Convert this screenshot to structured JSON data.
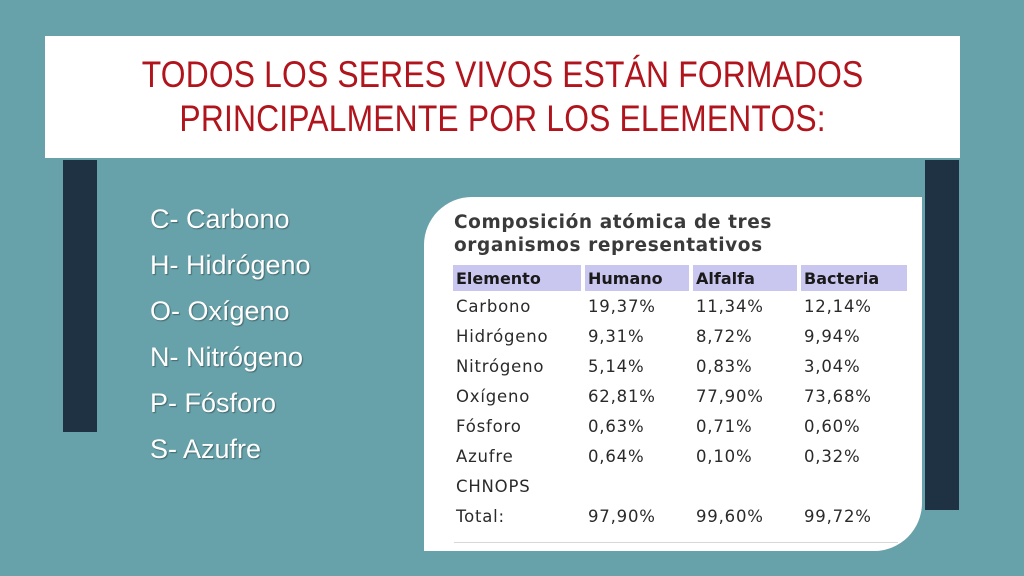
{
  "title": {
    "line1": "TODOS LOS SERES VIVOS ESTÁN FORMADOS",
    "line2": "PRINCIPALMENTE POR LOS ELEMENTOS:"
  },
  "elements": [
    "C- Carbono",
    "H- Hidrógeno",
    "O- Oxígeno",
    "N- Nitrógeno",
    "P- Fósforo",
    "S- Azufre"
  ],
  "table": {
    "heading": {
      "line1": "Composición atómica de tres",
      "line2": "organismos representativos"
    },
    "columns": [
      "Elemento",
      "Humano",
      "Alfalfa",
      "Bacteria"
    ],
    "rows": [
      [
        "Carbono",
        "19,37%",
        "11,34%",
        "12,14%"
      ],
      [
        "Hidrógeno",
        "9,31%",
        "8,72%",
        "9,94%"
      ],
      [
        "Nitrógeno",
        "5,14%",
        "0,83%",
        "3,04%"
      ],
      [
        "Oxígeno",
        "62,81%",
        "77,90%",
        "73,68%"
      ],
      [
        "Fósforo",
        "0,63%",
        "0,71%",
        "0,60%"
      ],
      [
        "Azufre",
        "0,64%",
        "0,10%",
        "0,32%"
      ],
      [
        "CHNOPS",
        "",
        "",
        ""
      ],
      [
        "Total:",
        "97,90%",
        "99,60%",
        "99,72%"
      ]
    ]
  },
  "colors": {
    "background": "#67a1a9",
    "accent_bar": "#1e3243",
    "title_text": "#b0141c",
    "header_fill": "#c9c6f0"
  }
}
